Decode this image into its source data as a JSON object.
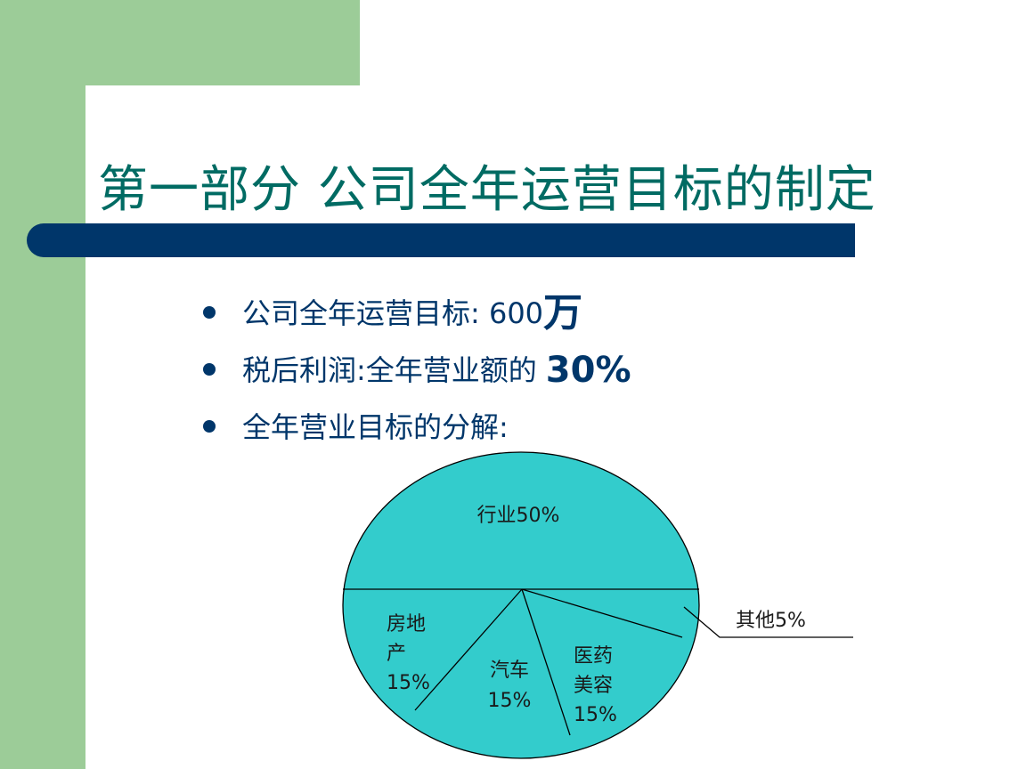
{
  "slide": {
    "title": "第一部分  公司全年运营目标的制定",
    "bullets": {
      "b1_text": "公司全年运营目标: 600",
      "b1_unit": "万",
      "b2_text": "税后利润:全年营业额的",
      "b2_value": "30%",
      "b3_text": "全年营业目标的分解:"
    },
    "colors": {
      "green_band": "#9ccc98",
      "navy": "#00366a",
      "title_teal": "#006b63",
      "pie_fill": "#33cccc"
    }
  },
  "chart_data": {
    "type": "pie",
    "title": "",
    "slices": [
      {
        "label_lines": [
          "行业50%"
        ],
        "value": 50
      },
      {
        "label_lines": [
          "房地",
          "产",
          "15%"
        ],
        "value": 15
      },
      {
        "label_lines": [
          "汽车",
          "15%"
        ],
        "value": 15
      },
      {
        "label_lines": [
          "医药",
          "美容",
          "15%"
        ],
        "value": 15
      },
      {
        "label_lines": [
          "其他5%"
        ],
        "value": 5
      }
    ]
  }
}
